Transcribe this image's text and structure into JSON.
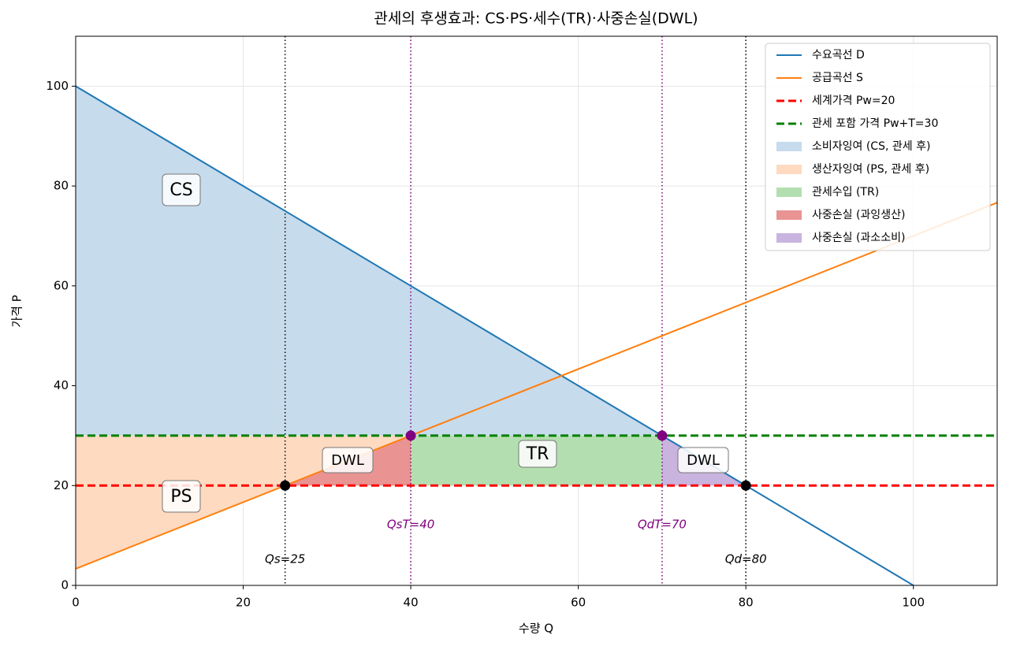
{
  "chart_data": {
    "type": "line",
    "title": "관세의 후생효과: CS·PS·세수(TR)·사중손실(DWL)",
    "xlabel": "수량 Q",
    "ylabel": "가격 P",
    "xlim": [
      0,
      110
    ],
    "ylim": [
      0,
      110
    ],
    "xticks": [
      0,
      20,
      40,
      60,
      80,
      100
    ],
    "yticks": [
      0,
      20,
      40,
      60,
      80,
      100
    ],
    "grid": true,
    "legend": "upper right",
    "series": [
      {
        "name": "수요곡선 D",
        "color": "#1f77b4",
        "linestyle": "solid",
        "x": [
          0,
          100
        ],
        "values": [
          100,
          0
        ]
      },
      {
        "name": "공급곡선 S",
        "color": "#ff7f0e",
        "linestyle": "solid",
        "x": [
          0,
          110
        ],
        "values": [
          3.33,
          76.67
        ]
      },
      {
        "name": "세계가격 Pw=20",
        "color": "#ff0000",
        "linestyle": "dashed",
        "x": [
          0,
          110
        ],
        "values": [
          20,
          20
        ]
      },
      {
        "name": "관세 포함 가격 Pw+T=30",
        "color": "#008000",
        "linestyle": "dashed",
        "x": [
          0,
          110
        ],
        "values": [
          30,
          30
        ]
      }
    ],
    "areas": [
      {
        "name": "소비자잉여 (CS, 관세 후)",
        "color": "#c6dbec",
        "x": [
          0,
          70,
          0
        ],
        "values": [
          100,
          30,
          30
        ]
      },
      {
        "name": "생산자잉여 (PS, 관세 후)",
        "color": "#fedac0",
        "x": [
          0,
          40,
          0
        ],
        "values": [
          3.33,
          30,
          30
        ]
      },
      {
        "name": "관세수입 (TR)",
        "color": "#b3dfb0",
        "x": [
          40,
          70,
          70,
          40
        ],
        "values": [
          30,
          30,
          20,
          20
        ]
      },
      {
        "name": "사중손실 (과잉생산)",
        "color": "#e99393",
        "x": [
          25,
          40,
          40
        ],
        "values": [
          20,
          30,
          20
        ]
      },
      {
        "name": "사중손실 (과소소비)",
        "color": "#c9b3df",
        "x": [
          70,
          80,
          70
        ],
        "values": [
          30,
          20,
          20
        ]
      }
    ],
    "vlines": [
      {
        "x": 25,
        "color": "#000000",
        "label": "Qs=25"
      },
      {
        "x": 40,
        "color": "#800080",
        "label": "QsT=40"
      },
      {
        "x": 70,
        "color": "#800080",
        "label": "QdT=70"
      },
      {
        "x": 80,
        "color": "#000000",
        "label": "Qd=80"
      }
    ],
    "points": [
      {
        "x": 25,
        "y": 20,
        "color": "#000000"
      },
      {
        "x": 80,
        "y": 20,
        "color": "#000000"
      },
      {
        "x": 40,
        "y": 30,
        "color": "#800080"
      },
      {
        "x": 70,
        "y": 30,
        "color": "#800080"
      }
    ],
    "annotations": [
      "CS",
      "PS",
      "DWL",
      "TR",
      "DWL"
    ]
  }
}
